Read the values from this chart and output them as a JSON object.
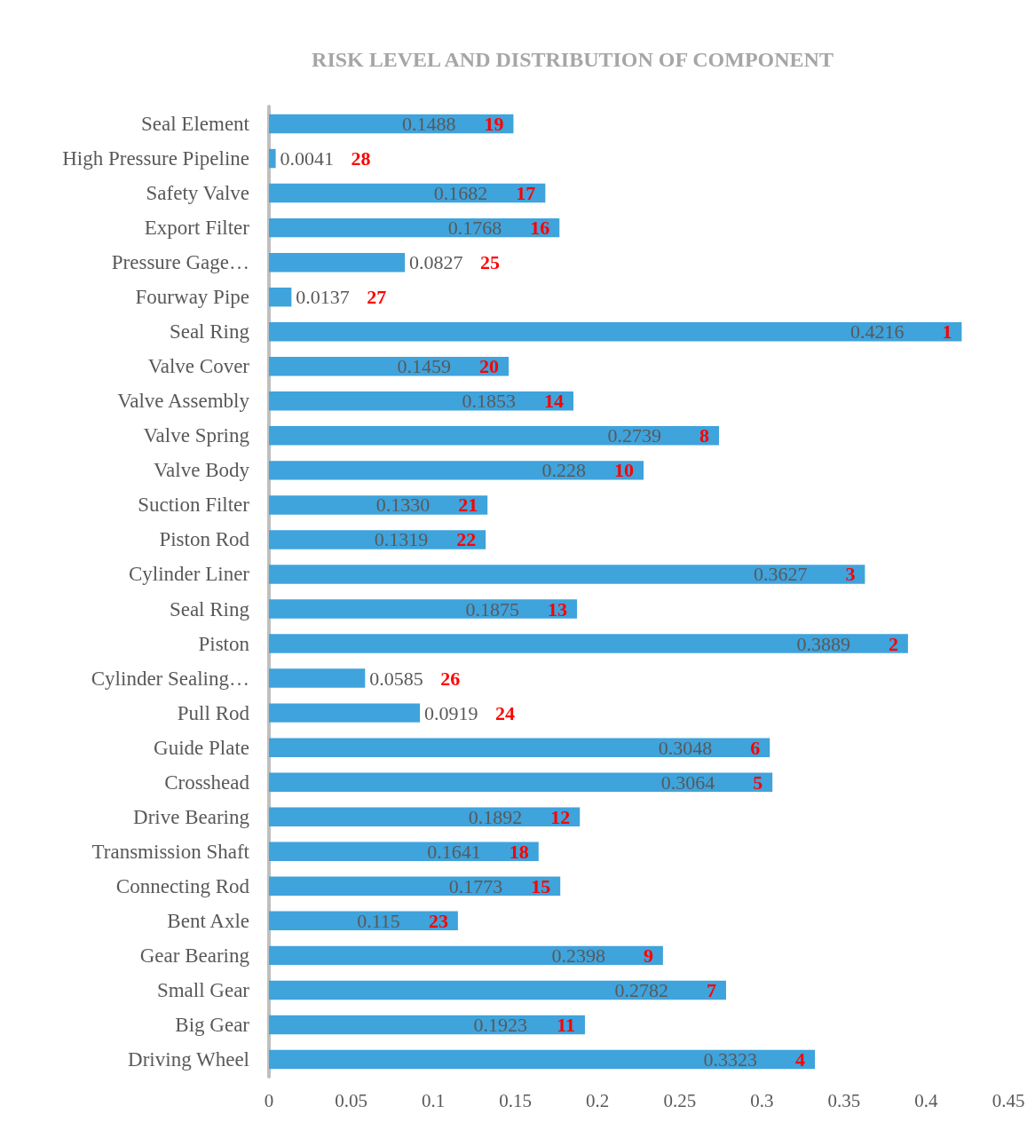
{
  "chart_data": {
    "type": "bar",
    "orientation": "horizontal",
    "title": "RISK LEVEL AND DISTRIBUTION OF COMPONENT",
    "categories": [
      "Seal Element",
      "High Pressure Pipeline",
      "Safety Valve",
      "Export Filter",
      "Pressure Gage…",
      "Fourway Pipe",
      "Seal Ring",
      "Valve Cover",
      "Valve Assembly",
      "Valve Spring",
      "Valve Body",
      "Suction Filter",
      "Piston Rod",
      "Cylinder Liner",
      "Seal Ring",
      "Piston",
      "Cylinder Sealing…",
      "Pull Rod",
      "Guide Plate",
      "Crosshead",
      "Drive Bearing",
      "Transmission Shaft",
      "Connecting Rod",
      "Bent Axle",
      "Gear Bearing",
      "Small Gear",
      "Big Gear",
      "Driving Wheel"
    ],
    "values": [
      0.1488,
      0.0041,
      0.1682,
      0.1768,
      0.0827,
      0.0137,
      0.4216,
      0.1459,
      0.1853,
      0.2739,
      0.228,
      0.133,
      0.1319,
      0.3627,
      0.1875,
      0.3889,
      0.0585,
      0.0919,
      0.3048,
      0.3064,
      0.1892,
      0.1641,
      0.1773,
      0.115,
      0.2398,
      0.2782,
      0.1923,
      0.3323
    ],
    "value_labels": [
      "0.1488",
      "0.0041",
      "0.1682",
      "0.1768",
      "0.0827",
      "0.0137",
      "0.4216",
      "0.1459",
      "0.1853",
      "0.2739",
      "0.228",
      "0.1330",
      "0.1319",
      "0.3627",
      "0.1875",
      "0.3889",
      "0.0585",
      "0.0919",
      "0.3048",
      "0.3064",
      "0.1892",
      "0.1641",
      "0.1773",
      "0.115",
      "0.2398",
      "0.2782",
      "0.1923",
      "0.3323"
    ],
    "color": "#3fa3dc",
    "xlim": [
      0,
      0.45
    ],
    "xticks": [
      0,
      0.05,
      0.1,
      0.15,
      0.2,
      0.25,
      0.3,
      0.35,
      0.4,
      0.45
    ],
    "grid": false,
    "annotations": [
      "19",
      "28",
      "17",
      "16",
      "25",
      "27",
      "1",
      "20",
      "14",
      "8",
      "10",
      "21",
      "22",
      "3",
      "13",
      "2",
      "26",
      "24",
      "6",
      "5",
      "12",
      "18",
      "15",
      "23",
      "9",
      "7",
      "11",
      "4"
    ]
  }
}
